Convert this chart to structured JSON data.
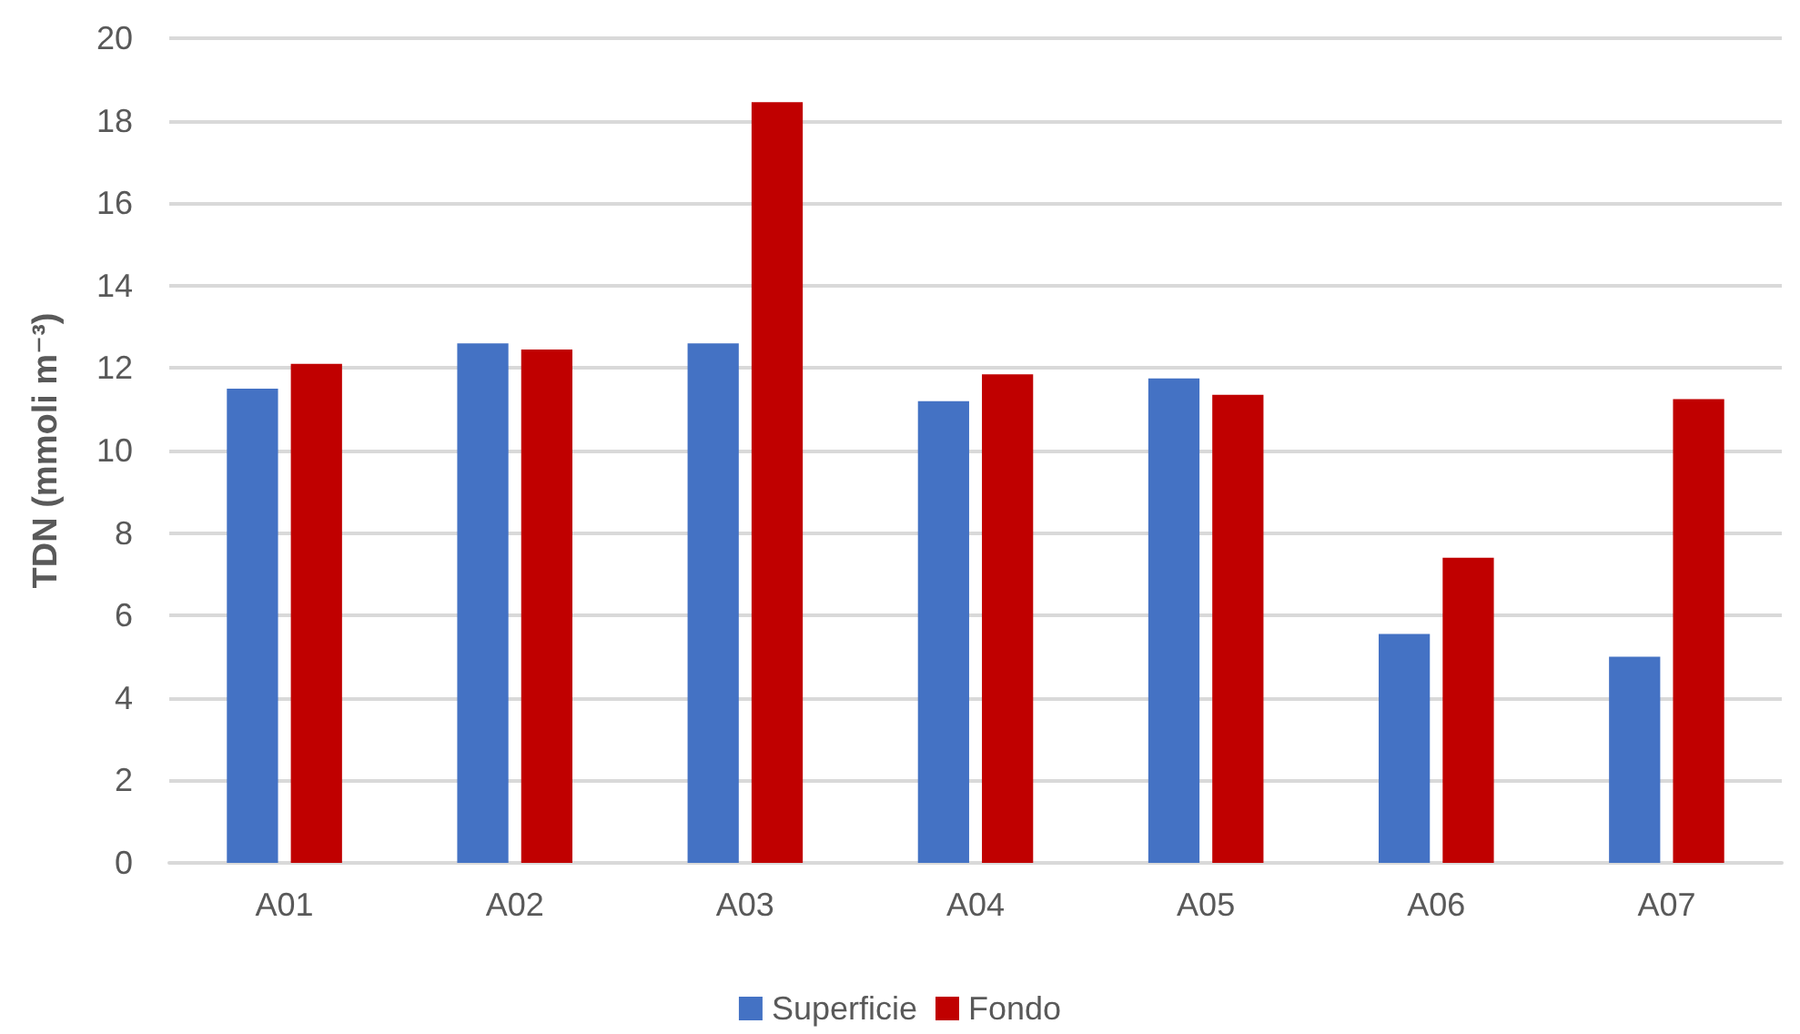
{
  "chart_data": {
    "type": "bar",
    "ylabel": "TDN (mmoli m⁻³)",
    "categories": [
      "A01",
      "A02",
      "A03",
      "A04",
      "A05",
      "A06",
      "A07"
    ],
    "series": [
      {
        "name": "Superficie",
        "color": "#4472c4",
        "values": [
          11.5,
          12.6,
          12.6,
          11.2,
          11.75,
          5.55,
          5.0
        ]
      },
      {
        "name": "Fondo",
        "color": "#c00000",
        "values": [
          12.1,
          12.45,
          18.45,
          11.85,
          11.35,
          7.4,
          11.25
        ]
      }
    ],
    "ylim": [
      0,
      20
    ],
    "yticks": [
      0,
      2,
      4,
      6,
      8,
      10,
      12,
      14,
      16,
      18,
      20
    ],
    "grid": "y",
    "legend": "bottom"
  }
}
